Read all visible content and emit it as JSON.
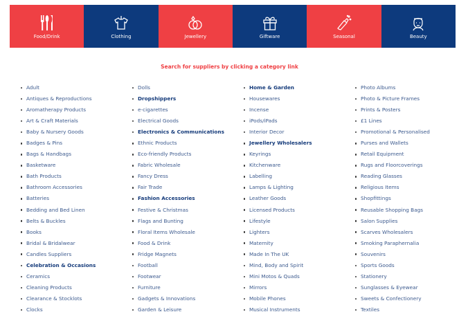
{
  "colors": {
    "red": "#ef4044",
    "navy": "#0d3a7d"
  },
  "tiles": [
    {
      "label": "Food/Drink",
      "icon": "cutlery-icon",
      "color": "#ef4044"
    },
    {
      "label": "Clothing",
      "icon": "tshirt-icon",
      "color": "#0d3a7d"
    },
    {
      "label": "Jewellery",
      "icon": "rings-icon",
      "color": "#ef4044"
    },
    {
      "label": "Giftware",
      "icon": "gift-icon",
      "color": "#0d3a7d"
    },
    {
      "label": "Seasonal",
      "icon": "champagne-icon",
      "color": "#ef4044"
    },
    {
      "label": "Beauty",
      "icon": "woman-face-icon",
      "color": "#0d3a7d"
    }
  ],
  "heading": "Search for suppliers by clicking a category link",
  "columns": [
    [
      {
        "t": "Adult"
      },
      {
        "t": "Antiques & Reproductions"
      },
      {
        "t": "Aromatherapy Products"
      },
      {
        "t": "Art & Craft Materials"
      },
      {
        "t": "Baby & Nursery Goods"
      },
      {
        "t": "Badges & Pins"
      },
      {
        "t": "Bags & Handbags"
      },
      {
        "t": "Basketware"
      },
      {
        "t": "Bath Products"
      },
      {
        "t": "Bathroom Accessories"
      },
      {
        "t": "Batteries"
      },
      {
        "t": "Bedding and Bed Linen"
      },
      {
        "t": "Belts & Buckles"
      },
      {
        "t": "Books"
      },
      {
        "t": "Bridal & Bridalwear"
      },
      {
        "t": "Candles Suppliers"
      },
      {
        "t": "Celebration & Occasions",
        "b": true
      },
      {
        "t": "Ceramics"
      },
      {
        "t": "Cleaning Products"
      },
      {
        "t": "Clearance & Stocklots"
      },
      {
        "t": "Clocks"
      }
    ],
    [
      {
        "t": "Dolls"
      },
      {
        "t": "Dropshippers",
        "b": true
      },
      {
        "t": "e-cigarettes"
      },
      {
        "t": "Electrical Goods"
      },
      {
        "t": "Electronics & Communications",
        "b": true
      },
      {
        "t": "Ethnic Products"
      },
      {
        "t": "Eco-friendly Products"
      },
      {
        "t": "Fabric Wholesale"
      },
      {
        "t": "Fancy Dress"
      },
      {
        "t": "Fair Trade"
      },
      {
        "t": "Fashion Accessories",
        "b": true
      },
      {
        "t": "Festive & Christmas"
      },
      {
        "t": "Flags and Bunting"
      },
      {
        "t": "Floral Items Wholesale"
      },
      {
        "t": "Food & Drink"
      },
      {
        "t": "Fridge Magnets"
      },
      {
        "t": "Football"
      },
      {
        "t": "Footwear"
      },
      {
        "t": "Furniture"
      },
      {
        "t": "Gadgets & Innovations"
      },
      {
        "t": "Garden & Leisure"
      }
    ],
    [
      {
        "t": "Home & Garden",
        "b": true
      },
      {
        "t": "Housewares"
      },
      {
        "t": "Incense"
      },
      {
        "t": "iPods/iPads"
      },
      {
        "t": "Interior Decor"
      },
      {
        "t": "Jewellery Wholesalers",
        "b": true
      },
      {
        "t": "Keyrings"
      },
      {
        "t": "Kitchenware"
      },
      {
        "t": "Labelling"
      },
      {
        "t": "Lamps & Lighting"
      },
      {
        "t": "Leather Goods"
      },
      {
        "t": "Licensed Products"
      },
      {
        "t": "Lifestyle"
      },
      {
        "t": "Lighters"
      },
      {
        "t": "Maternity"
      },
      {
        "t": "Made In The UK"
      },
      {
        "t": "Mind, Body and Spirit"
      },
      {
        "t": "Mini Motos & Quads"
      },
      {
        "t": "Mirrors"
      },
      {
        "t": "Mobile Phones"
      },
      {
        "t": "Musical Instruments"
      }
    ],
    [
      {
        "t": "Photo Albums"
      },
      {
        "t": "Photo & Picture Frames"
      },
      {
        "t": "Prints & Posters"
      },
      {
        "t": "£1 Lines"
      },
      {
        "t": "Promotional & Personalised"
      },
      {
        "t": "Purses and Wallets"
      },
      {
        "t": "Retail Equipment"
      },
      {
        "t": "Rugs and Floorcoverings"
      },
      {
        "t": "Reading Glasses"
      },
      {
        "t": "Religious Items"
      },
      {
        "t": "Shopfittings"
      },
      {
        "t": "Reusable Shopping Bags"
      },
      {
        "t": "Salon Supplies"
      },
      {
        "t": "Scarves Wholesalers"
      },
      {
        "t": "Smoking Paraphernalia"
      },
      {
        "t": "Souvenirs"
      },
      {
        "t": "Sports Goods"
      },
      {
        "t": "Stationery"
      },
      {
        "t": "Sunglasses & Eyewear"
      },
      {
        "t": "Sweets & Confectionery"
      },
      {
        "t": "Textiles"
      }
    ]
  ]
}
